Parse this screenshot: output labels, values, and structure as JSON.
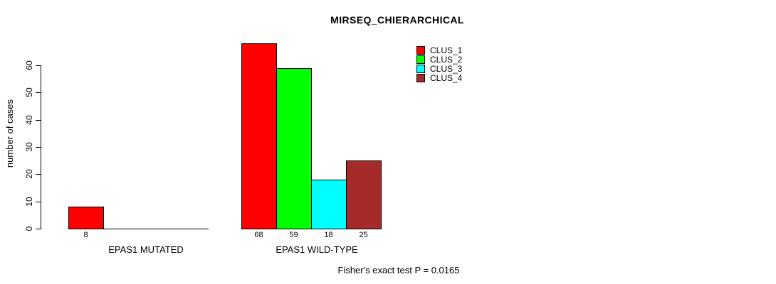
{
  "chart_data": {
    "type": "bar",
    "title": "MIRSEQ_CHIERARCHICAL",
    "categories": [
      "EPAS1 MUTATED",
      "EPAS1 WILD-TYPE"
    ],
    "series": [
      {
        "name": "CLUS_1",
        "color": "#ff0000",
        "values": [
          8,
          68
        ]
      },
      {
        "name": "CLUS_2",
        "color": "#00ff00",
        "values": [
          0,
          59
        ]
      },
      {
        "name": "CLUS_3",
        "color": "#00ffff",
        "values": [
          0,
          18
        ]
      },
      {
        "name": "CLUS_4",
        "color": "#a52a2a",
        "values": [
          0,
          25
        ]
      }
    ],
    "bar_value_labels": [
      "8",
      "68",
      "59",
      "18",
      "25"
    ],
    "xlabel": "",
    "ylabel": "number of cases",
    "ylim": [
      0,
      60
    ],
    "yticks": [
      0,
      10,
      20,
      30,
      40,
      50,
      60
    ],
    "grid": false,
    "legend_position": "top-right",
    "bar_border_color": "#000000",
    "axis_color": "#000000",
    "annotation": "Fisher's exact test P = 0.0165"
  }
}
